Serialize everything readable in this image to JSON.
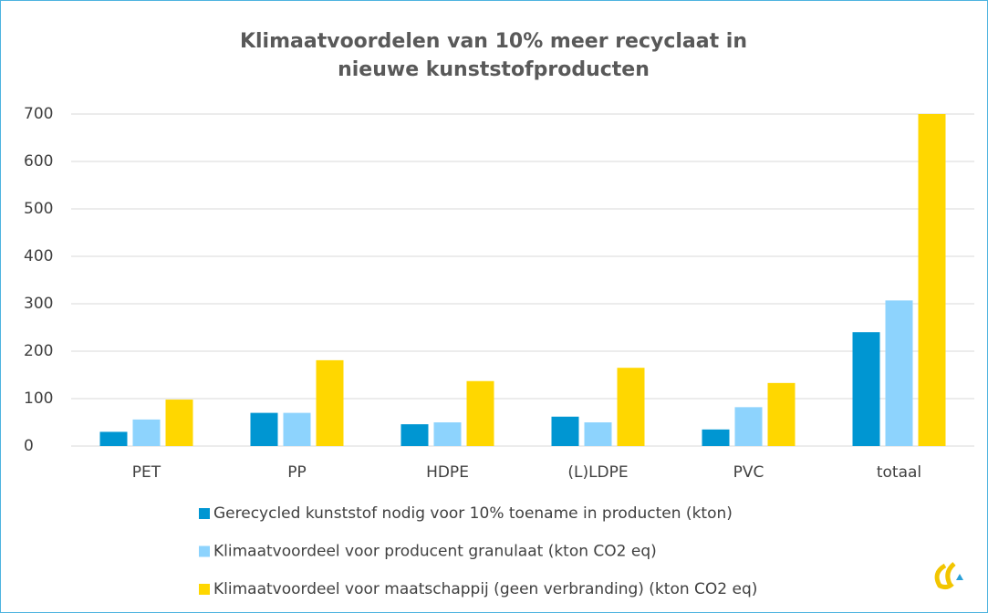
{
  "chart_data": {
    "type": "bar",
    "title": "Klimaatvoordelen van 10% meer recyclaat in nieuwe kunststofproducten",
    "categories": [
      "PET",
      "PP",
      "HDPE",
      "(L)LDPE",
      "PVC",
      "totaal"
    ],
    "series": [
      {
        "name": "Gerecycled kunststof nodig voor 10% toename in producten (kton)",
        "color": "#0096d2",
        "values": [
          30,
          70,
          46,
          62,
          35,
          240
        ]
      },
      {
        "name": "Klimaatvoordeel voor producent granulaat (kton CO2 eq)",
        "color": "#8dd3fd",
        "values": [
          56,
          70,
          50,
          50,
          82,
          307
        ]
      },
      {
        "name": "Klimaatvoordeel voor maatschappij (geen verbranding) (kton CO2 eq)",
        "color": "#ffd700",
        "values": [
          98,
          181,
          137,
          165,
          133,
          700
        ]
      }
    ],
    "ylim": [
      0,
      700
    ],
    "yticks": [
      0,
      100,
      200,
      300,
      400,
      500,
      600,
      700
    ],
    "grid": true,
    "legend": "bottom"
  }
}
